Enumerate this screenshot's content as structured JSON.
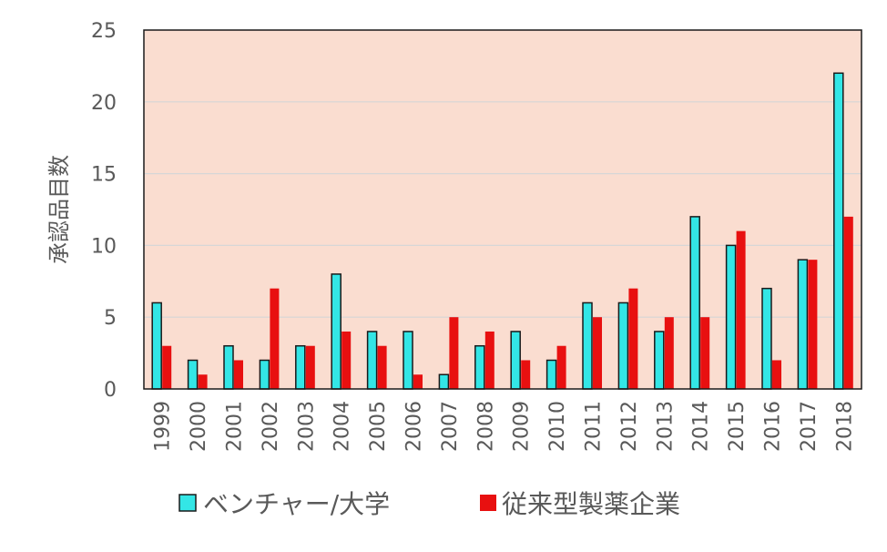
{
  "chart_data": {
    "type": "bar",
    "title": "",
    "xlabel": "",
    "ylabel": "承認品目数",
    "ylim": [
      0,
      25
    ],
    "yticks": [
      0,
      5,
      10,
      15,
      20,
      25
    ],
    "grid": true,
    "legend_position": "bottom",
    "categories": [
      "1999",
      "2000",
      "2001",
      "2002",
      "2003",
      "2004",
      "2005",
      "2006",
      "2007",
      "2008",
      "2009",
      "2010",
      "2011",
      "2012",
      "2013",
      "2014",
      "2015",
      "2016",
      "2017",
      "2018"
    ],
    "series": [
      {
        "name": "ベンチャー/大学",
        "color": "#33E6E6",
        "values": [
          6,
          2,
          3,
          2,
          3,
          8,
          4,
          4,
          1,
          3,
          4,
          2,
          6,
          6,
          4,
          12,
          10,
          7,
          9,
          22
        ]
      },
      {
        "name": "従来型製薬企業",
        "color": "#E81010",
        "values": [
          3,
          1,
          2,
          7,
          3,
          4,
          3,
          1,
          5,
          4,
          2,
          3,
          5,
          7,
          5,
          5,
          11,
          2,
          9,
          12
        ]
      }
    ],
    "colors": {
      "plot_background": "#FADDD0",
      "gridline": "#D6D6D6",
      "bar_outline": "#1A1A1A"
    }
  }
}
